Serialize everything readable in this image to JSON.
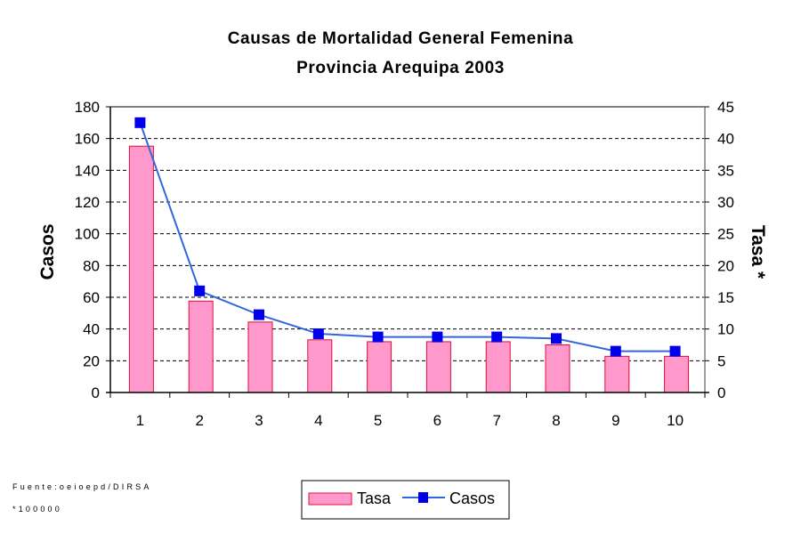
{
  "chart_data": {
    "type": "bar",
    "title": "Causas de Mortalidad General Femenina",
    "subtitle": "Provincia Arequipa 2003",
    "xlabel": "",
    "ylabel": "Casos",
    "y2label": "Tasa *",
    "categories": [
      "1",
      "2",
      "3",
      "4",
      "5",
      "6",
      "7",
      "8",
      "9",
      "10"
    ],
    "ylim": [
      0,
      180
    ],
    "yticks": [
      "0",
      "20",
      "40",
      "60",
      "80",
      "100",
      "120",
      "140",
      "160",
      "180"
    ],
    "y2lim": [
      0,
      45
    ],
    "y2ticks": [
      "0",
      "5",
      "10",
      "15",
      "20",
      "25",
      "30",
      "35",
      "40",
      "45"
    ],
    "grid": true,
    "legend_position": "bottom-center",
    "series": [
      {
        "name": "Tasa",
        "type": "bar",
        "axis": "right",
        "color": "#ff99cc",
        "edge_color": "#e0103a",
        "values": [
          38.8,
          14.4,
          11.1,
          8.3,
          8.0,
          8.0,
          8.0,
          7.5,
          5.7,
          5.7
        ]
      },
      {
        "name": "Casos",
        "type": "line",
        "axis": "left",
        "color": "#3366dd",
        "marker_color": "#0000ee",
        "marker": "square",
        "values": [
          170,
          64,
          49,
          37,
          35,
          35,
          35,
          34,
          26,
          26
        ]
      }
    ]
  },
  "footnotes": {
    "source": "Fuente:oeioepd/DIRSA",
    "rate_note": "*100000"
  }
}
